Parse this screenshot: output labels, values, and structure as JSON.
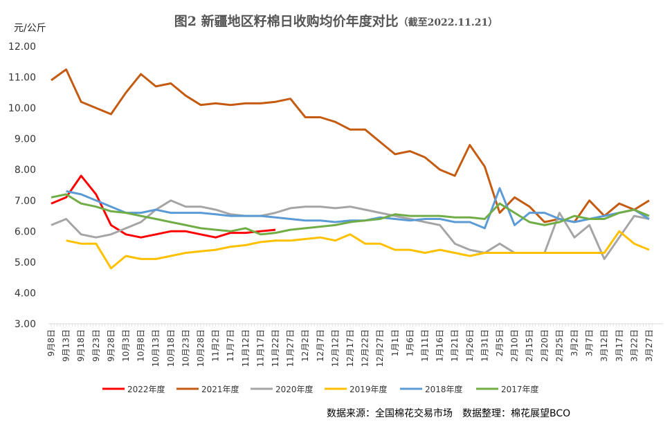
{
  "chart_data": {
    "type": "line",
    "title": "图2 新疆地区籽棉日收购均价年度对比",
    "subtitle": "（截至2022.11.21）",
    "ylabel": "元/公斤",
    "xlabel": "",
    "ylim": [
      3,
      12
    ],
    "yticks": [
      "3.00",
      "4.00",
      "5.00",
      "6.00",
      "7.00",
      "8.00",
      "9.00",
      "10.00",
      "11.00",
      "12.00"
    ],
    "categories": [
      "9月8日",
      "9月13日",
      "9月18日",
      "9月23日",
      "9月28日",
      "10月3日",
      "10月8日",
      "10月13日",
      "10月18日",
      "10月23日",
      "10月28日",
      "11月2日",
      "11月7日",
      "11月12日",
      "11月17日",
      "11月22日",
      "11月27日",
      "12月2日",
      "12月7日",
      "12月12日",
      "12月17日",
      "12月22日",
      "12月27日",
      "1月1日",
      "1月6日",
      "1月11日",
      "1月16日",
      "1月21日",
      "1月26日",
      "1月31日",
      "2月5日",
      "2月10日",
      "2月15日",
      "2月20日",
      "2月25日",
      "3月2日",
      "3月7日",
      "3月12日",
      "3月17日",
      "3月22日",
      "3月27日"
    ],
    "series": [
      {
        "name": "2022年度",
        "color": "#ff0000",
        "values": [
          6.9,
          7.1,
          7.8,
          7.2,
          6.2,
          5.9,
          5.8,
          5.9,
          6.0,
          6.0,
          5.9,
          5.8,
          5.95,
          5.95,
          6.0,
          6.05,
          null,
          null,
          null,
          null,
          null,
          null,
          null,
          null,
          null,
          null,
          null,
          null,
          null,
          null,
          null,
          null,
          null,
          null,
          null,
          null,
          null,
          null,
          null,
          null,
          null
        ]
      },
      {
        "name": "2021年度",
        "color": "#c55a11",
        "values": [
          10.9,
          11.25,
          10.2,
          10.0,
          9.8,
          10.5,
          11.1,
          10.7,
          10.8,
          10.4,
          10.1,
          10.15,
          10.1,
          10.15,
          10.15,
          10.2,
          10.3,
          9.7,
          9.7,
          9.55,
          9.3,
          9.3,
          8.9,
          8.5,
          8.6,
          8.4,
          8.0,
          7.8,
          8.8,
          8.1,
          6.6,
          7.1,
          6.8,
          6.3,
          6.4,
          6.3,
          7.0,
          6.5,
          6.9,
          6.7,
          7.0
        ]
      },
      {
        "name": "2020年度",
        "color": "#a5a5a5",
        "values": [
          6.2,
          6.4,
          5.9,
          5.8,
          5.9,
          6.1,
          6.3,
          6.7,
          7.0,
          6.8,
          6.8,
          6.7,
          6.55,
          6.5,
          6.5,
          6.6,
          6.75,
          6.8,
          6.8,
          6.75,
          6.8,
          6.7,
          6.6,
          6.5,
          6.4,
          6.3,
          6.2,
          5.6,
          5.4,
          5.3,
          5.6,
          5.3,
          5.3,
          5.3,
          6.6,
          5.8,
          6.2,
          5.1,
          5.8,
          6.5,
          6.4
        ]
      },
      {
        "name": "2019年度",
        "color": "#ffc000",
        "values": [
          null,
          5.7,
          5.6,
          5.6,
          4.8,
          5.2,
          5.1,
          5.1,
          5.2,
          5.3,
          5.35,
          5.4,
          5.5,
          5.55,
          5.65,
          5.7,
          5.7,
          5.75,
          5.8,
          5.7,
          5.9,
          5.6,
          5.6,
          5.4,
          5.4,
          5.3,
          5.4,
          5.3,
          5.2,
          5.3,
          5.3,
          5.3,
          5.3,
          5.3,
          5.3,
          5.3,
          5.3,
          5.3,
          6.0,
          5.6,
          5.4
        ]
      },
      {
        "name": "2018年度",
        "color": "#5b9bd5",
        "values": [
          null,
          7.3,
          7.2,
          7.0,
          6.8,
          6.6,
          6.6,
          6.7,
          6.6,
          6.6,
          6.6,
          6.55,
          6.5,
          6.5,
          6.5,
          6.45,
          6.4,
          6.35,
          6.35,
          6.3,
          6.35,
          6.35,
          6.45,
          6.4,
          6.35,
          6.4,
          6.4,
          6.3,
          6.3,
          6.1,
          7.4,
          6.2,
          6.6,
          6.6,
          6.4,
          6.3,
          6.4,
          6.5,
          6.6,
          6.7,
          6.4
        ]
      },
      {
        "name": "2017年度",
        "color": "#70ad47",
        "values": [
          7.1,
          7.2,
          6.9,
          6.8,
          6.65,
          6.6,
          6.5,
          6.4,
          6.3,
          6.2,
          6.1,
          6.05,
          6.0,
          6.1,
          5.9,
          5.95,
          6.05,
          6.1,
          6.15,
          6.2,
          6.3,
          6.35,
          6.4,
          6.55,
          6.5,
          6.5,
          6.5,
          6.45,
          6.45,
          6.4,
          6.9,
          6.6,
          6.3,
          6.2,
          6.3,
          6.5,
          6.4,
          6.4,
          6.6,
          6.7,
          6.5
        ]
      }
    ],
    "legend": "bottom",
    "grid": false
  },
  "source": "数据来源：全国棉花交易市场　数据整理：棉花展望BCO"
}
